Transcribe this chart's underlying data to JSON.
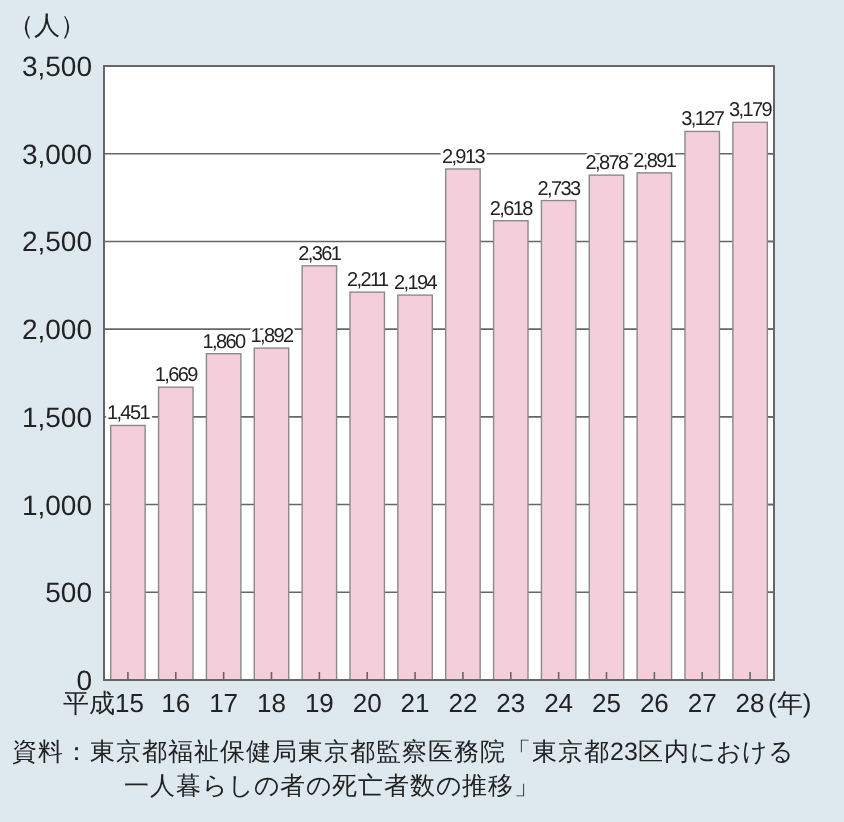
{
  "chart_data": {
    "type": "bar",
    "ylabel": "（人）",
    "xlabel": "(年)",
    "categories": [
      "平成15",
      "16",
      "17",
      "18",
      "19",
      "20",
      "21",
      "22",
      "23",
      "24",
      "25",
      "26",
      "27",
      "28"
    ],
    "values": [
      1451,
      1669,
      1860,
      1892,
      2361,
      2211,
      2194,
      2913,
      2618,
      2733,
      2878,
      2891,
      3127,
      3179
    ],
    "color": "#f5cedc",
    "ylim": [
      0,
      3500
    ],
    "yticks": [
      {
        "value": 0,
        "label": "0"
      },
      {
        "value": 500,
        "label": "500"
      },
      {
        "value": 1000,
        "label": "1,000"
      },
      {
        "value": 1500,
        "label": "1,500"
      },
      {
        "value": 2000,
        "label": "2,000"
      },
      {
        "value": 2500,
        "label": "2,500"
      },
      {
        "value": 3000,
        "label": "3,000"
      },
      {
        "value": 3500,
        "label": "3,500"
      }
    ],
    "grid": "y",
    "value_labels": [
      "1,451",
      "1,669",
      "1,860",
      "1,892",
      "2,361",
      "2,211",
      "2,194",
      "2,913",
      "2,618",
      "2,733",
      "2,878",
      "2,891",
      "3,127",
      "3,179"
    ],
    "annotations": [
      "資料：東京都福祉保健局東京都監察医務院「東京都23区内における一人暮らしの者の死亡者数の推移」"
    ]
  }
}
